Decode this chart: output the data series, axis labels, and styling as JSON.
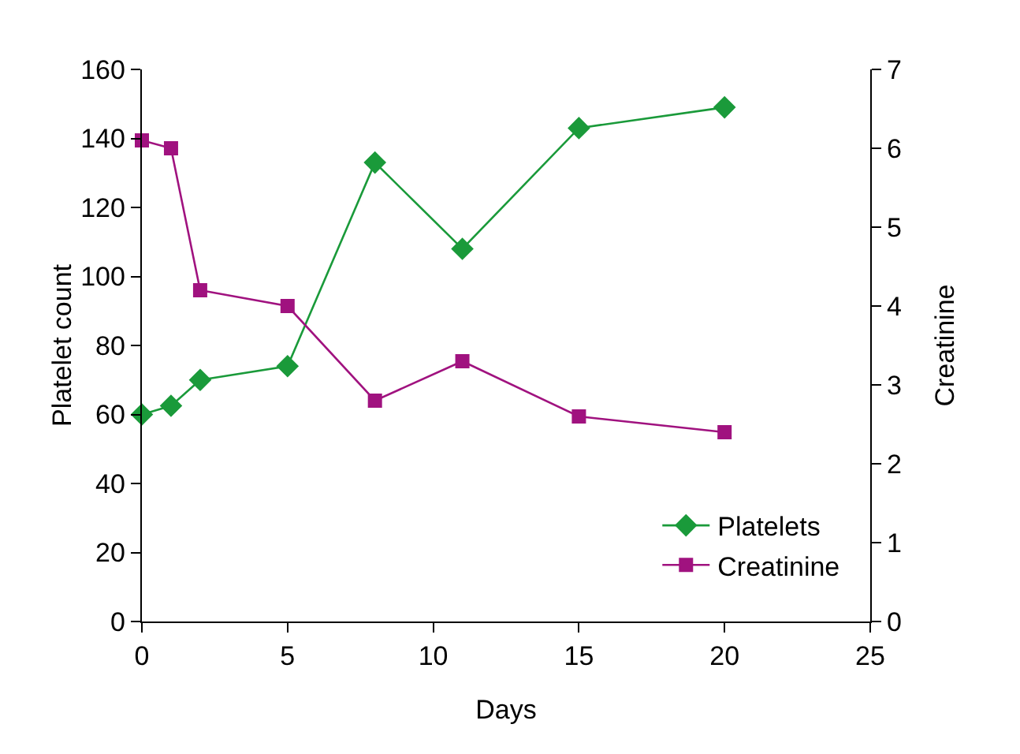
{
  "chart_data": {
    "type": "line",
    "xlabel": "Days",
    "ylabel": "Platelet count",
    "y2label": "Creatinine",
    "x": [
      0,
      1,
      2,
      5,
      8,
      11,
      15,
      20
    ],
    "series": [
      {
        "name": "Platelets",
        "color": "#1a9a3a",
        "marker": "diamond",
        "values": [
          60,
          62.5,
          70,
          74,
          133,
          108,
          143,
          149
        ]
      },
      {
        "name": "Creatinine",
        "color": "#a0127f",
        "marker": "square",
        "axis": "y2",
        "values": [
          6.1,
          6.0,
          4.2,
          4.0,
          2.8,
          3.3,
          2.6,
          2.4
        ]
      }
    ],
    "xlim": [
      0,
      25
    ],
    "xticks": [
      0,
      5,
      10,
      15,
      20,
      25
    ],
    "ylim": [
      0,
      160
    ],
    "yticks": [
      0,
      20,
      40,
      60,
      80,
      100,
      120,
      140,
      160
    ],
    "y2lim": [
      0,
      7
    ],
    "y2ticks": [
      0,
      1,
      2,
      3,
      4,
      5,
      6,
      7
    ],
    "grid": false,
    "legend": "bottom right",
    "line_style": "solid"
  }
}
